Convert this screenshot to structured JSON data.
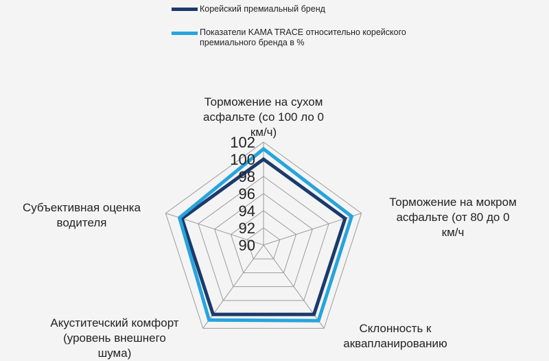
{
  "chart_data": {
    "type": "radar",
    "axes": [
      [
        "Торможение на сухом",
        "асфальте (со 100 ло 0",
        "км/ч)"
      ],
      [
        "Торможение на мокром",
        "асфальте (от 80 до 0",
        "км/ч"
      ],
      [
        "Склонность к",
        "аквапланированию"
      ],
      [
        "Акуститечский комфорт",
        "(уровень внешнего",
        "шума)"
      ],
      [
        "Субъективная оценка",
        "водителя"
      ]
    ],
    "rlim": [
      90,
      102
    ],
    "ticks": [
      "90",
      "92",
      "94",
      "96",
      "98",
      "100",
      "102"
    ],
    "grid": true,
    "legend_position": "top",
    "series": [
      {
        "name": "Корейский премиальный бренд",
        "color": "#1b3a6b",
        "values": [
          100,
          100,
          100,
          100,
          100
        ]
      },
      {
        "name": "Показатели KAMA TRACE  относительно корейского премиального бренда в %",
        "name_lines": [
          "Показатели KAMA TRACE  относительно корейского",
          "премиального бренда в %"
        ],
        "color": "#27a4dc",
        "values": [
          101.2,
          100.8,
          100.9,
          100.8,
          100.3
        ]
      }
    ]
  }
}
